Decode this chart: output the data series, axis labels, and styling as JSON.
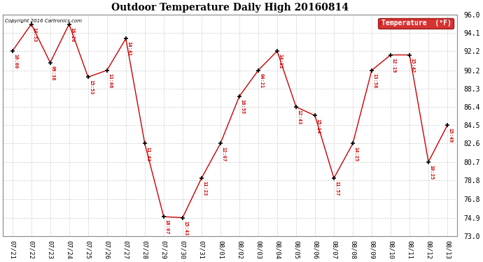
{
  "title": "Outdoor Temperature Daily High 20160814",
  "copyright_text": "Copyright 2016 Cartronics.com",
  "background_color": "#ffffff",
  "plot_bg_color": "#ffffff",
  "grid_color": "#cccccc",
  "line_color": "#cc0000",
  "marker_color": "#000000",
  "label_color": "#cc0000",
  "dates": [
    "07/21",
    "07/22",
    "07/23",
    "07/24",
    "07/25",
    "07/26",
    "07/27",
    "07/28",
    "07/29",
    "07/30",
    "07/31",
    "08/01",
    "08/02",
    "08/03",
    "08/04",
    "08/05",
    "08/06",
    "08/07",
    "08/08",
    "08/09",
    "08/10",
    "08/11",
    "08/12",
    "08/13"
  ],
  "values": [
    92.2,
    95.0,
    91.0,
    95.0,
    89.5,
    90.2,
    93.5,
    82.6,
    75.0,
    74.9,
    79.0,
    82.6,
    87.5,
    90.2,
    92.2,
    86.4,
    85.5,
    79.0,
    82.6,
    90.2,
    91.8,
    91.8,
    80.7,
    84.5
  ],
  "time_labels": [
    "16:00",
    "14:53",
    "09:38",
    "16:26",
    "15:53",
    "13:06",
    "14:41",
    "11:43",
    "16:07",
    "15:43",
    "11:23",
    "12:07",
    "16:55",
    "04:21",
    "14:11",
    "12:43",
    "15:14",
    "11:57",
    "14:25",
    "13:58",
    "12:19",
    "15:42",
    "10:25",
    "15:49"
  ],
  "ylim_min": 73.0,
  "ylim_max": 96.0,
  "yticks": [
    73.0,
    74.9,
    76.8,
    78.8,
    80.7,
    82.6,
    84.5,
    86.4,
    88.3,
    90.2,
    92.2,
    94.1,
    96.0
  ],
  "legend_label": "Temperature  (°F)",
  "legend_bg": "#cc0000",
  "legend_text_color": "#ffffff",
  "figwidth": 6.9,
  "figheight": 3.75,
  "dpi": 100
}
